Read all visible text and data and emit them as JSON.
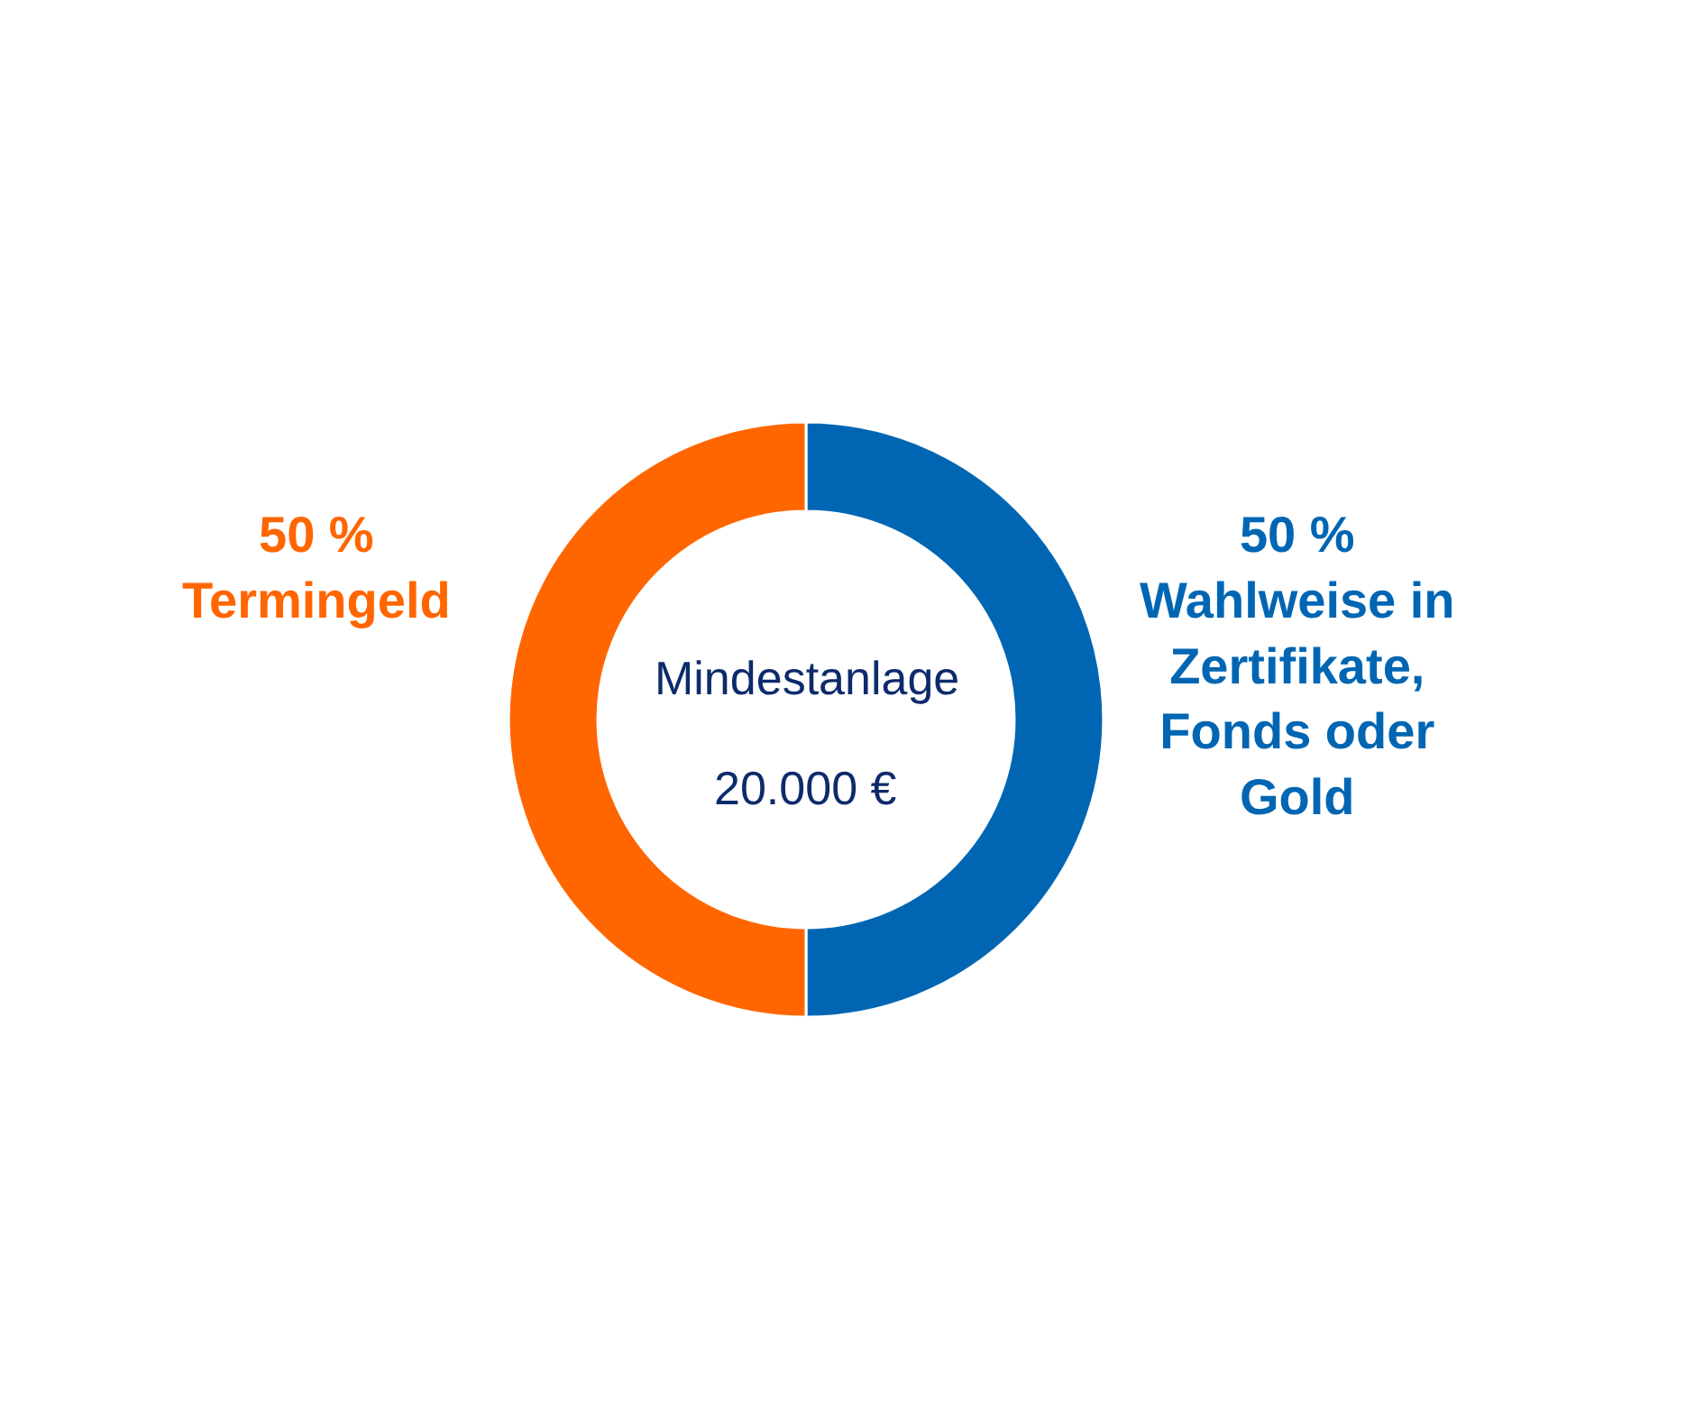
{
  "chart_data": {
    "type": "donut",
    "categories": [
      "Wahlweise in Zertifikate, Fonds oder Gold",
      "Termingeld"
    ],
    "values": [
      50,
      50
    ],
    "colors": [
      "#0066b3",
      "#ff6600"
    ],
    "value_labels": [
      "50 %",
      "50 %"
    ],
    "annotations": [
      "Mindestanlage",
      "20.000 €"
    ]
  }
}
